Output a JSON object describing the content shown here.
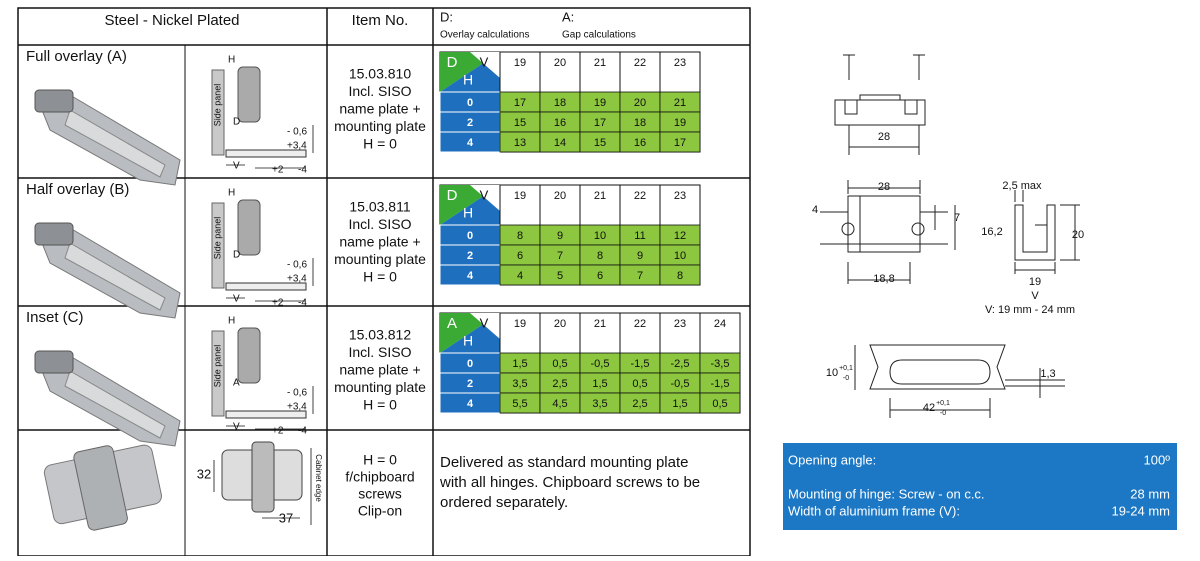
{
  "table": {
    "headers": [
      "Steel - Nickel Plated",
      "Item No."
    ],
    "calc_header": {
      "d_label": "D:",
      "d_text": "Overlay calculations",
      "a_label": "A:",
      "a_text": "Gap calculations"
    },
    "rows": [
      {
        "name": "Full overlay (A)",
        "diagram_labels": [
          "H",
          "Side panel",
          "D",
          "- 0,6",
          "+3,4",
          "V",
          "+2",
          "-4"
        ],
        "item": [
          "15.03.810",
          "Incl. SISO",
          "name plate +",
          "mounting plate",
          "H = 0"
        ],
        "grid": {
          "corner": [
            "D",
            "V",
            "H"
          ],
          "columns": [
            "19",
            "20",
            "21",
            "22",
            "23"
          ],
          "rows": [
            {
              "h": "0",
              "values": [
                "17",
                "18",
                "19",
                "20",
                "21"
              ]
            },
            {
              "h": "2",
              "values": [
                "15",
                "16",
                "17",
                "18",
                "19"
              ]
            },
            {
              "h": "4",
              "values": [
                "13",
                "14",
                "15",
                "16",
                "17"
              ]
            }
          ]
        }
      },
      {
        "name": "Half overlay (B)",
        "diagram_labels": [
          "H",
          "Side panel",
          "D",
          "- 0,6",
          "+3,4",
          "V",
          "+2",
          "-4"
        ],
        "item": [
          "15.03.811",
          "Incl. SISO",
          "name plate +",
          "mounting plate",
          "H = 0"
        ],
        "grid": {
          "corner": [
            "D",
            "V",
            "H"
          ],
          "columns": [
            "19",
            "20",
            "21",
            "22",
            "23"
          ],
          "rows": [
            {
              "h": "0",
              "values": [
                "8",
                "9",
                "10",
                "11",
                "12"
              ]
            },
            {
              "h": "2",
              "values": [
                "6",
                "7",
                "8",
                "9",
                "10"
              ]
            },
            {
              "h": "4",
              "values": [
                "4",
                "5",
                "6",
                "7",
                "8"
              ]
            }
          ]
        }
      },
      {
        "name": "Inset (C)",
        "diagram_labels": [
          "H",
          "Side panel",
          "A",
          "- 0,6",
          "+3,4",
          "V",
          "+2",
          "-4"
        ],
        "item": [
          "15.03.812",
          "Incl. SISO",
          "name plate +",
          "mounting plate",
          "H = 0"
        ],
        "grid": {
          "corner": [
            "A",
            "V",
            "H"
          ],
          "columns": [
            "19",
            "20",
            "21",
            "22",
            "23",
            "24"
          ],
          "rows": [
            {
              "h": "0",
              "values": [
                "1,5",
                "0,5",
                "-0,5",
                "-1,5",
                "-2,5",
                "-3,5"
              ]
            },
            {
              "h": "2",
              "values": [
                "3,5",
                "2,5",
                "1,5",
                "0,5",
                "-0,5",
                "-1,5"
              ]
            },
            {
              "h": "4",
              "values": [
                "5,5",
                "4,5",
                "3,5",
                "2,5",
                "1,5",
                "0,5"
              ]
            }
          ]
        }
      }
    ],
    "plate_row": {
      "diagram_labels": [
        "32",
        "37",
        "Cabinet edge"
      ],
      "item": [
        "H = 0",
        "f/chipboard",
        "screws",
        "Clip-on"
      ],
      "description": [
        "Delivered as standard mounting plate",
        "with all hinges. Chipboard screws to be",
        "ordered separately."
      ]
    }
  },
  "drawings": {
    "labels": [
      "28",
      "28",
      "4",
      "7",
      "16,2",
      "18,8",
      "2,5 max",
      "20",
      "19",
      "V",
      "V: 19 mm - 24 mm",
      "10",
      "+0,1",
      "-0",
      "1,3",
      "42",
      "+0,1",
      "-0"
    ]
  },
  "info": {
    "rows": [
      [
        "Opening angle:",
        "100º"
      ],
      [
        "Mounting of hinge: Screw - on c.c.",
        "28 mm"
      ],
      [
        "Width of aluminium frame (V):",
        "19-24 mm"
      ]
    ]
  }
}
